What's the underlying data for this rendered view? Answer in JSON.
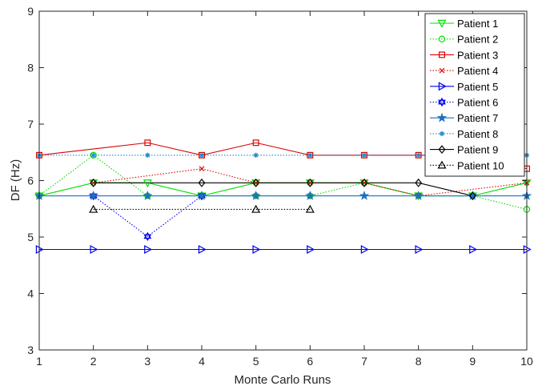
{
  "chart_data": {
    "type": "line",
    "xlabel": "Monte Carlo Runs",
    "ylabel": "DF (Hz)",
    "xlim": [
      1,
      10
    ],
    "ylim": [
      3,
      9
    ],
    "xticks": [
      "1",
      "2",
      "3",
      "4",
      "5",
      "6",
      "7",
      "8",
      "9",
      "10"
    ],
    "yticks": [
      "3",
      "4",
      "5",
      "6",
      "7",
      "8",
      "9"
    ],
    "grid": false,
    "legend_position": "top-right",
    "series": [
      {
        "name": "Patient 1",
        "color": "#00dd00",
        "line": "solid",
        "marker": "triangle-down",
        "x": [
          1,
          2,
          3,
          4,
          5,
          6,
          7,
          8,
          9,
          10
        ],
        "y": [
          5.73,
          5.96,
          5.96,
          5.73,
          5.96,
          5.96,
          5.96,
          5.73,
          5.73,
          5.96
        ]
      },
      {
        "name": "Patient 2",
        "color": "#00dd00",
        "line": "dotted",
        "marker": "circle",
        "x": [
          1,
          2,
          3,
          4,
          5,
          6,
          7,
          8,
          9,
          10
        ],
        "y": [
          5.73,
          6.45,
          5.73,
          5.73,
          5.73,
          5.73,
          5.96,
          5.73,
          5.73,
          5.49
        ]
      },
      {
        "name": "Patient 3",
        "color": "#dd0000",
        "line": "solid",
        "marker": "square",
        "x": [
          1,
          3,
          4,
          5,
          6,
          7,
          8,
          9,
          10
        ],
        "y": [
          6.45,
          6.67,
          6.45,
          6.67,
          6.45,
          6.45,
          6.45,
          6.45,
          6.21
        ]
      },
      {
        "name": "Patient 4",
        "color": "#dd0000",
        "line": "dotted",
        "marker": "x",
        "x": [
          2,
          4,
          5,
          6,
          7,
          8,
          10
        ],
        "y": [
          5.96,
          6.21,
          5.96,
          5.96,
          5.96,
          5.73,
          5.96
        ]
      },
      {
        "name": "Patient 5",
        "color": "#0000ee",
        "line": "solid",
        "marker": "triangle-right",
        "x": [
          1,
          2,
          3,
          4,
          5,
          6,
          7,
          8,
          9,
          10
        ],
        "y": [
          4.78,
          4.78,
          4.78,
          4.78,
          4.78,
          4.78,
          4.78,
          4.78,
          4.78,
          4.78
        ]
      },
      {
        "name": "Patient 6",
        "color": "#0000ee",
        "line": "dotted",
        "marker": "hexagram",
        "x": [
          2,
          3,
          4
        ],
        "y": [
          5.73,
          5.01,
          5.73
        ]
      },
      {
        "name": "Patient 7",
        "color": "#1f6fc0",
        "line": "solid",
        "marker": "pentagram",
        "x": [
          1,
          2,
          3,
          4,
          5,
          6,
          7,
          8,
          9,
          10
        ],
        "y": [
          5.73,
          5.73,
          5.73,
          5.73,
          5.73,
          5.73,
          5.73,
          5.73,
          5.73,
          5.73
        ]
      },
      {
        "name": "Patient 8",
        "color": "#1f8ad0",
        "line": "dotted",
        "marker": "asterisk",
        "x": [
          1,
          2,
          3,
          4,
          5,
          6,
          7,
          8,
          9,
          10
        ],
        "y": [
          6.45,
          6.45,
          6.45,
          6.45,
          6.45,
          6.45,
          6.45,
          6.45,
          6.45,
          6.45
        ]
      },
      {
        "name": "Patient 9",
        "color": "#000000",
        "line": "solid",
        "marker": "diamond",
        "x": [
          2,
          4,
          5,
          6,
          7,
          8,
          9
        ],
        "y": [
          5.96,
          5.96,
          5.96,
          5.96,
          5.96,
          5.96,
          5.73
        ]
      },
      {
        "name": "Patient 10",
        "color": "#000000",
        "line": "dotted",
        "marker": "triangle-up",
        "x": [
          2,
          5,
          6
        ],
        "y": [
          5.49,
          5.49,
          5.49
        ]
      }
    ]
  }
}
